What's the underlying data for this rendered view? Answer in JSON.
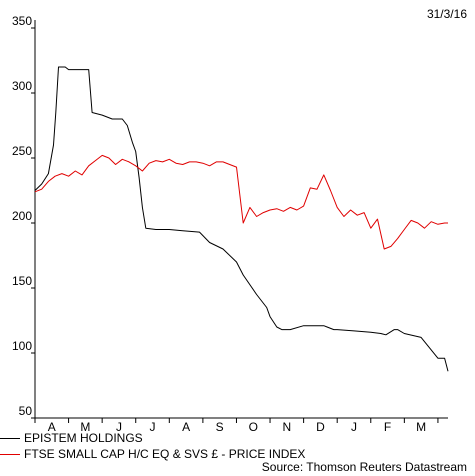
{
  "date_label": "31/3/16",
  "source": "Source: Thomson Reuters Datastream",
  "colors": {
    "series_1": "#000000",
    "series_2": "#e00000",
    "axis": "#000000"
  },
  "chart_data": {
    "type": "line",
    "title": "",
    "xlabel": "",
    "ylabel": "",
    "x_tick_labels": [
      "A",
      "M",
      "J",
      "J",
      "A",
      "S",
      "O",
      "N",
      "D",
      "J",
      "F",
      "M"
    ],
    "x_range_months": [
      0,
      12.3
    ],
    "ylim": [
      50,
      350
    ],
    "y_ticks": [
      50,
      100,
      150,
      200,
      250,
      300,
      350
    ],
    "grid": false,
    "legend_position": "bottom-left",
    "series": [
      {
        "name": "EPISTEM HOLDINGS",
        "color": "#000000",
        "x": [
          0,
          0.2,
          0.4,
          0.55,
          0.62,
          0.7,
          0.9,
          1.0,
          1.2,
          1.3,
          1.6,
          1.7,
          2.0,
          2.3,
          2.6,
          2.75,
          2.9,
          3.0,
          3.05,
          3.1,
          3.2,
          3.3,
          3.6,
          4.0,
          4.4,
          4.9,
          5.2,
          5.6,
          6.0,
          6.2,
          6.6,
          6.9,
          7.0,
          7.2,
          7.35,
          7.6,
          8.0,
          8.4,
          8.6,
          8.7,
          8.9,
          9.0,
          9.5,
          10.0,
          10.3,
          10.45,
          10.7,
          10.8,
          11.0,
          11.5,
          12.0,
          12.2,
          12.3
        ],
        "y": [
          225,
          230,
          238,
          260,
          285,
          320,
          320,
          318,
          318,
          318,
          318,
          285,
          283,
          280,
          280,
          275,
          262,
          255,
          245,
          235,
          212,
          196,
          195,
          195,
          194,
          193,
          185,
          180,
          170,
          160,
          145,
          135,
          128,
          120,
          118,
          118,
          121,
          121,
          121,
          120,
          118,
          118,
          117,
          116,
          115,
          114,
          118,
          118,
          115,
          112,
          96,
          96,
          86
        ]
      },
      {
        "name": "FTSE SMALL CAP H/C EQ & SVS £ - PRICE INDEX",
        "color": "#e00000",
        "x": [
          0,
          0.2,
          0.4,
          0.6,
          0.8,
          1.0,
          1.2,
          1.4,
          1.6,
          1.8,
          2.0,
          2.2,
          2.4,
          2.6,
          2.8,
          3.0,
          3.2,
          3.4,
          3.6,
          3.8,
          4.0,
          4.2,
          4.4,
          4.6,
          4.8,
          5.0,
          5.2,
          5.4,
          5.6,
          5.8,
          6.0,
          6.2,
          6.4,
          6.6,
          6.8,
          7.0,
          7.2,
          7.4,
          7.6,
          7.8,
          8.0,
          8.2,
          8.4,
          8.6,
          8.8,
          9.0,
          9.2,
          9.4,
          9.6,
          9.8,
          10.0,
          10.2,
          10.4,
          10.6,
          10.8,
          11.0,
          11.2,
          11.4,
          11.6,
          11.8,
          12.0,
          12.2,
          12.3
        ],
        "y": [
          224,
          226,
          232,
          236,
          238,
          236,
          240,
          237,
          244,
          248,
          252,
          250,
          245,
          249,
          247,
          244,
          240,
          246,
          248,
          247,
          249,
          246,
          245,
          247,
          247,
          246,
          244,
          247,
          247,
          245,
          243,
          200,
          212,
          205,
          208,
          210,
          211,
          209,
          212,
          210,
          213,
          227,
          226,
          237,
          225,
          212,
          205,
          210,
          206,
          208,
          196,
          203,
          180,
          182,
          188,
          195,
          202,
          200,
          196,
          201,
          199,
          200,
          200
        ]
      }
    ]
  }
}
